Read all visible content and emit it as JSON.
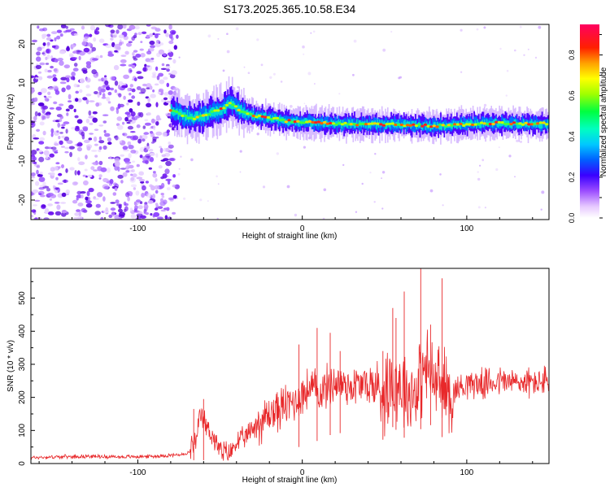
{
  "title": "S173.2025.365.10.58.E34",
  "colors": {
    "snr_line": "#e8282a",
    "frame": "#000000",
    "text": "#000000"
  },
  "chart_data": [
    {
      "type": "heatmap",
      "xlabel": "Height of straight line (km)",
      "ylabel": "Frequency (Hz)",
      "xlim": [
        -165,
        150
      ],
      "ylim": [
        -25,
        25
      ],
      "x_ticks": [
        -100,
        0,
        100
      ],
      "x_tick_labels": [
        "-100",
        "0",
        "100"
      ],
      "y_ticks": [
        -20,
        -10,
        0,
        10,
        20
      ],
      "y_tick_labels": [
        "-20",
        "-10",
        "0",
        "10",
        "20"
      ],
      "noise_region_x": [
        -165,
        -76
      ],
      "signal_track": {
        "x": [
          -80,
          -72,
          -65,
          -58,
          -50,
          -44,
          -38,
          -30,
          -20,
          -10,
          0,
          20,
          40,
          60,
          80,
          100,
          120,
          150
        ],
        "frequency_hz": [
          3,
          1.5,
          1,
          2,
          3,
          5,
          3,
          1.5,
          1,
          0.3,
          0,
          -0.5,
          -0.5,
          -0.7,
          -1,
          -0.6,
          -0.3,
          -0.5
        ]
      },
      "colorbar": {
        "label": "Normalized spectral amplitude",
        "range": [
          0,
          0.95
        ],
        "ticks": [
          0.0,
          0.2,
          0.4,
          0.6,
          0.8
        ],
        "tick_labels": [
          "0.0",
          "0.2",
          "0.4",
          "0.6",
          "0.8"
        ]
      },
      "grid": false
    },
    {
      "type": "line",
      "xlabel": "Height of straight line (km)",
      "ylabel": "SNR (10 * v/v)",
      "xlim": [
        -165,
        150
      ],
      "ylim": [
        0,
        590
      ],
      "x_ticks": [
        -100,
        0,
        100
      ],
      "x_tick_labels": [
        "-100",
        "0",
        "100"
      ],
      "y_ticks": [
        0,
        100,
        200,
        300,
        400,
        500
      ],
      "y_tick_labels": [
        "0",
        "100",
        "200",
        "300",
        "400",
        "500"
      ],
      "series": [
        {
          "name": "SNR",
          "x": [
            -165,
            -150,
            -130,
            -110,
            -90,
            -70,
            -64,
            -62,
            -58,
            -54,
            -50,
            -44,
            -40,
            -34,
            -30,
            -24,
            -20,
            -14,
            -10,
            -4,
            0,
            5,
            10,
            20,
            30,
            40,
            50,
            55,
            60,
            65,
            70,
            75,
            80,
            85,
            90,
            100,
            110,
            120,
            130,
            140,
            150
          ],
          "values": [
            18,
            20,
            22,
            20,
            22,
            28,
            70,
            150,
            110,
            80,
            35,
            30,
            65,
            80,
            110,
            130,
            150,
            165,
            175,
            190,
            210,
            230,
            215,
            245,
            235,
            240,
            220,
            260,
            240,
            210,
            230,
            290,
            250,
            230,
            210,
            245,
            240,
            250,
            245,
            245,
            250
          ]
        }
      ],
      "peaks": {
        "x": [
          -66,
          -60,
          -2,
          9,
          17,
          23,
          49,
          55,
          57,
          62,
          72,
          78,
          85
        ],
        "values": [
          165,
          195,
          360,
          410,
          395,
          340,
          340,
          470,
          440,
          520,
          590,
          420,
          560
        ]
      },
      "grid": false
    }
  ]
}
